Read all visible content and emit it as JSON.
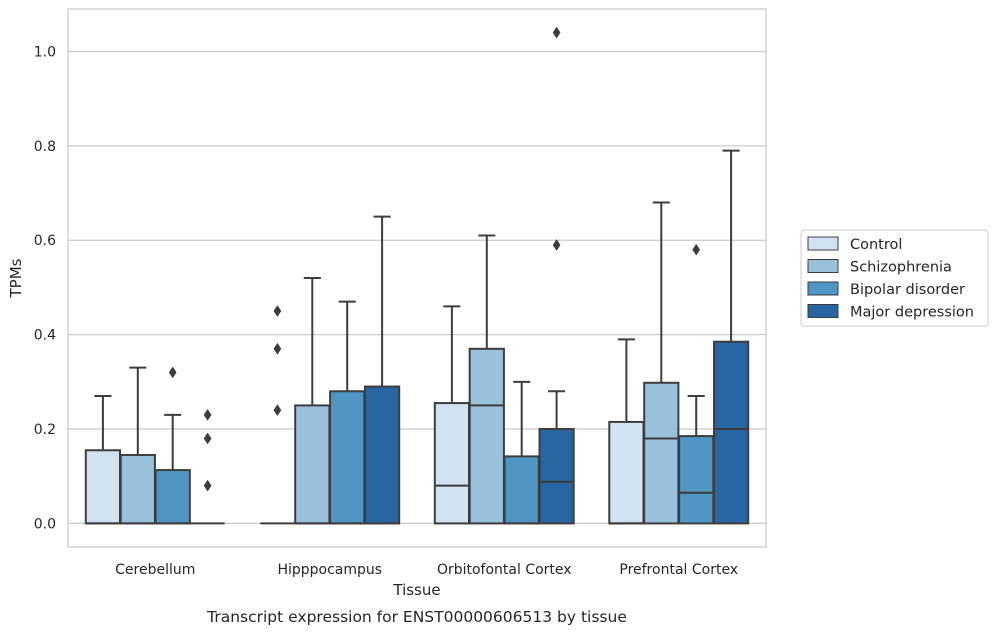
{
  "chart_data": {
    "type": "boxplot",
    "xlabel": "Tissue",
    "ylabel": "TPMs",
    "caption": "Transcript expression for ENST00000606513 by tissue",
    "ylim": [
      -0.05,
      1.09
    ],
    "yticks": [
      0.0,
      0.2,
      0.4,
      0.6,
      0.8,
      1.0
    ],
    "ytick_labels": [
      "0.0",
      "0.2",
      "0.4",
      "0.6",
      "0.8",
      "1.0"
    ],
    "grid": "horizontal",
    "legend_position": "right",
    "categories": [
      "Cerebellum",
      "Hipppocampus",
      "Orbitofontal Cortex",
      "Prefrontal Cortex"
    ],
    "series": [
      {
        "name": "Control",
        "color": "#d1e2f2",
        "boxes": [
          {
            "q1": 0.0,
            "median": 0.0,
            "q3": 0.155,
            "whisker_low": 0.0,
            "whisker_high": 0.27,
            "outliers": []
          },
          {
            "q1": 0.0,
            "median": 0.0,
            "q3": 0.0,
            "whisker_low": 0.0,
            "whisker_high": 0.0,
            "outliers": [
              0.24,
              0.37,
              0.45
            ]
          },
          {
            "q1": 0.0,
            "median": 0.08,
            "q3": 0.255,
            "whisker_low": 0.0,
            "whisker_high": 0.46,
            "outliers": []
          },
          {
            "q1": 0.0,
            "median": 0.0,
            "q3": 0.215,
            "whisker_low": 0.0,
            "whisker_high": 0.39,
            "outliers": []
          }
        ]
      },
      {
        "name": "Schizophrenia",
        "color": "#9ac1dc",
        "boxes": [
          {
            "q1": 0.0,
            "median": 0.0,
            "q3": 0.145,
            "whisker_low": 0.0,
            "whisker_high": 0.33,
            "outliers": []
          },
          {
            "q1": 0.0,
            "median": 0.0,
            "q3": 0.25,
            "whisker_low": 0.0,
            "whisker_high": 0.52,
            "outliers": []
          },
          {
            "q1": 0.0,
            "median": 0.25,
            "q3": 0.37,
            "whisker_low": 0.0,
            "whisker_high": 0.61,
            "outliers": []
          },
          {
            "q1": 0.0,
            "median": 0.18,
            "q3": 0.298,
            "whisker_low": 0.0,
            "whisker_high": 0.68,
            "outliers": []
          }
        ]
      },
      {
        "name": "Bipolar disorder",
        "color": "#5096c5",
        "boxes": [
          {
            "q1": 0.0,
            "median": 0.0,
            "q3": 0.113,
            "whisker_low": 0.0,
            "whisker_high": 0.23,
            "outliers": [
              0.32
            ]
          },
          {
            "q1": 0.0,
            "median": 0.0,
            "q3": 0.28,
            "whisker_low": 0.0,
            "whisker_high": 0.47,
            "outliers": []
          },
          {
            "q1": 0.0,
            "median": 0.0,
            "q3": 0.142,
            "whisker_low": 0.0,
            "whisker_high": 0.3,
            "outliers": []
          },
          {
            "q1": 0.0,
            "median": 0.065,
            "q3": 0.185,
            "whisker_low": 0.0,
            "whisker_high": 0.27,
            "outliers": [
              0.58
            ]
          }
        ]
      },
      {
        "name": "Major depression",
        "color": "#2765a3",
        "boxes": [
          {
            "q1": 0.0,
            "median": 0.0,
            "q3": 0.0,
            "whisker_low": 0.0,
            "whisker_high": 0.0,
            "outliers": [
              0.08,
              0.18,
              0.23
            ]
          },
          {
            "q1": 0.0,
            "median": 0.0,
            "q3": 0.29,
            "whisker_low": 0.0,
            "whisker_high": 0.65,
            "outliers": []
          },
          {
            "q1": 0.0,
            "median": 0.088,
            "q3": 0.2,
            "whisker_low": 0.0,
            "whisker_high": 0.28,
            "outliers": [
              0.59,
              1.04
            ]
          },
          {
            "q1": 0.0,
            "median": 0.2,
            "q3": 0.385,
            "whisker_low": 0.0,
            "whisker_high": 0.79,
            "outliers": []
          }
        ]
      }
    ]
  }
}
